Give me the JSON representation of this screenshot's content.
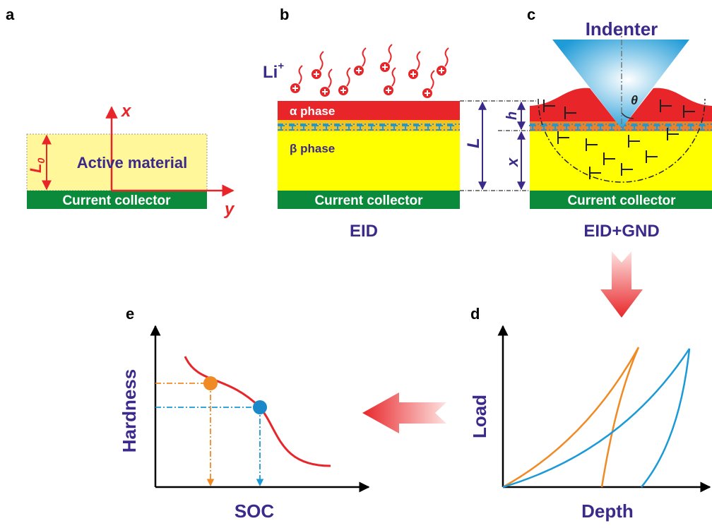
{
  "panels": [
    {
      "label": "a",
      "x_axis": "x",
      "y_axis": "y",
      "thickness_symbol": "L",
      "thickness_subscript": "0",
      "layer": "Active material",
      "substrate": "Current collector"
    },
    {
      "label": "b",
      "ion": "Li",
      "ion_charge": "+",
      "top_layer": "α phase",
      "bottom_layer": "β phase",
      "substrate": "Current collector",
      "total_thickness": "L",
      "caption": "EID"
    },
    {
      "label": "c",
      "indenter": "Indenter",
      "angle": "θ",
      "depth": "h",
      "remaining": "x",
      "substrate": "Current collector",
      "caption": "EID+GND"
    },
    {
      "label": "d",
      "y_axis": "Load",
      "x_axis": "Depth"
    },
    {
      "label": "e",
      "y_axis": "Hardness",
      "x_axis": "SOC"
    }
  ]
}
